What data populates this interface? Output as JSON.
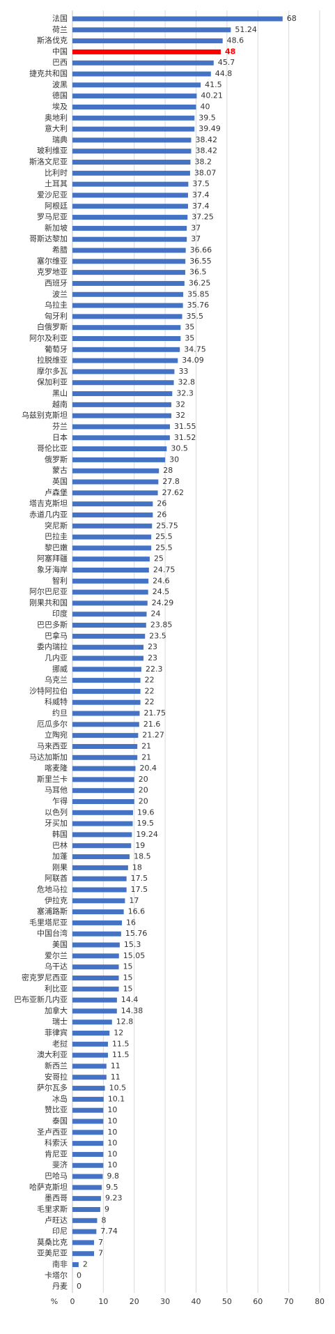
{
  "chart_data": {
    "type": "bar",
    "orientation": "horizontal",
    "x_label": "%",
    "categories": [
      "法国",
      "荷兰",
      "斯洛伐克",
      "中国",
      "巴西",
      "捷克共和国",
      "波黑",
      "德国",
      "埃及",
      "奥地利",
      "意大利",
      "瑞典",
      "玻利维亚",
      "斯洛文尼亚",
      "比利时",
      "土耳其",
      "爱沙尼亚",
      "阿根廷",
      "罗马尼亚",
      "新加坡",
      "哥斯达黎加",
      "希腊",
      "塞尔维亚",
      "克罗地亚",
      "西班牙",
      "波兰",
      "乌拉圭",
      "匈牙利",
      "白俄罗斯",
      "阿尔及利亚",
      "葡萄牙",
      "拉脱维亚",
      "摩尔多瓦",
      "保加利亚",
      "黑山",
      "越南",
      "乌兹别克斯坦",
      "芬兰",
      "日本",
      "哥伦比亚",
      "俄罗斯",
      "蒙古",
      "英国",
      "卢森堡",
      "塔吉克斯坦",
      "赤道几内亚",
      "突尼斯",
      "巴拉圭",
      "黎巴嫩",
      "阿塞拜疆",
      "象牙海岸",
      "智利",
      "阿尔巴尼亚",
      "刚果共和国",
      "印度",
      "巴巴多斯",
      "巴拿马",
      "委内瑞拉",
      "几内亚",
      "挪威",
      "乌克兰",
      "沙特阿拉伯",
      "科威特",
      "约旦",
      "厄瓜多尔",
      "立陶宛",
      "马来西亚",
      "马达加斯加",
      "喀麦隆",
      "斯里兰卡",
      "马耳他",
      "乍得",
      "以色列",
      "牙买加",
      "韩国",
      "巴林",
      "加蓬",
      "刚果",
      "阿联酋",
      "危地马拉",
      "伊拉克",
      "塞浦路斯",
      "毛里塔尼亚",
      "中国台湾",
      "美国",
      "爱尔兰",
      "乌干达",
      "密克罗尼西亚",
      "利比亚",
      "巴布亚新几内亚",
      "加拿大",
      "瑞士",
      "菲律宾",
      "老挝",
      "澳大利亚",
      "新西兰",
      "安哥拉",
      "萨尔瓦多",
      "冰岛",
      "赞比亚",
      "泰国",
      "圣卢西亚",
      "科索沃",
      "肯尼亚",
      "斐济",
      "巴哈马",
      "哈萨克斯坦",
      "墨西哥",
      "毛里求斯",
      "卢旺达",
      "印尼",
      "莫桑比克",
      "亚美尼亚",
      "南非",
      "卡塔尔",
      "丹麦"
    ],
    "values": [
      68,
      51.24,
      48.6,
      48,
      45.7,
      44.8,
      41.5,
      40.21,
      40,
      39.5,
      39.49,
      38.42,
      38.42,
      38.2,
      38.07,
      37.5,
      37.4,
      37.4,
      37.25,
      37,
      37,
      36.66,
      36.55,
      36.5,
      36.25,
      35.85,
      35.76,
      35.5,
      35,
      35,
      34.75,
      34.09,
      33,
      32.8,
      32.3,
      32,
      32,
      31.55,
      31.52,
      30.5,
      30,
      28,
      27.8,
      27.62,
      26,
      26,
      25.75,
      25.5,
      25.5,
      25,
      24.75,
      24.6,
      24.5,
      24.29,
      24,
      23.85,
      23.5,
      23,
      23,
      22.3,
      22,
      22,
      22,
      21.75,
      21.6,
      21.27,
      21,
      21,
      20.4,
      20,
      20,
      20,
      19.6,
      19.5,
      19.24,
      19,
      18.5,
      18,
      17.5,
      17.5,
      17,
      16.6,
      16,
      15.76,
      15.3,
      15.05,
      15,
      15,
      15,
      14.4,
      14.38,
      12.8,
      12,
      11.5,
      11.5,
      11,
      11,
      10.5,
      10.1,
      10,
      10,
      10,
      10,
      10,
      10,
      9.8,
      9.5,
      9.23,
      9,
      8,
      7.74,
      7,
      7,
      2,
      0,
      0
    ],
    "color": "#4472c4",
    "highlight": {
      "category": "中国",
      "color": "#ff0000"
    },
    "xlim": [
      0,
      80
    ],
    "xticks": [
      0,
      10,
      20,
      30,
      40,
      50,
      60,
      70,
      80
    ],
    "grid": true
  }
}
